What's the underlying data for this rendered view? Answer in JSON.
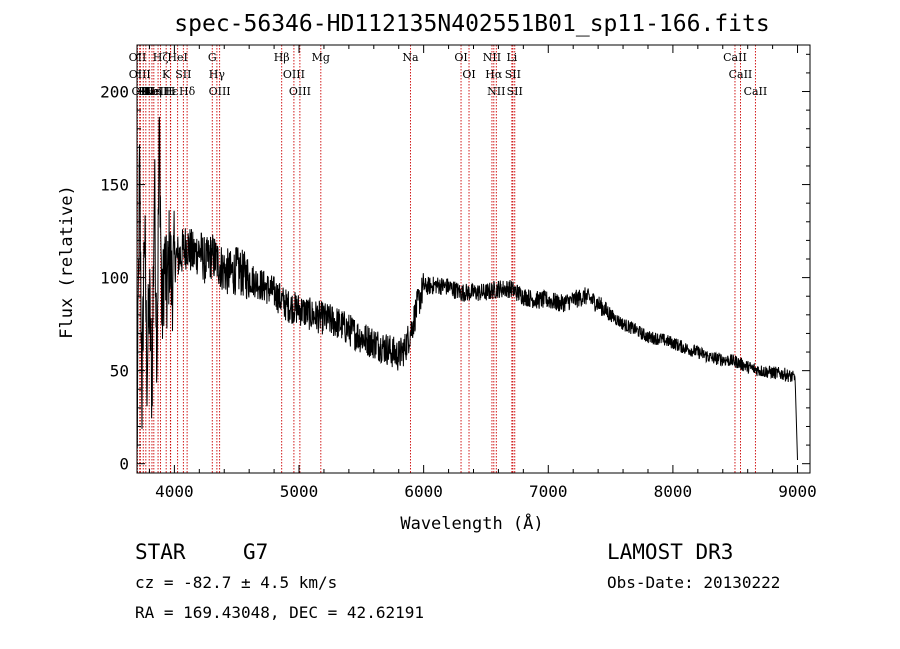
{
  "chart_data": {
    "type": "line",
    "title": "spec-56346-HD112135N402551B01_sp11-166.fits",
    "xlabel": "Wavelength (Å)",
    "ylabel": "Flux (relative)",
    "xlim": [
      3700,
      9100
    ],
    "ylim": [
      -5,
      225
    ],
    "x_ticks": [
      4000,
      5000,
      6000,
      7000,
      8000,
      9000
    ],
    "y_ticks": [
      0,
      50,
      100,
      150,
      200
    ],
    "grid": false,
    "series": [
      {
        "name": "flux",
        "x": [
          3700,
          3720,
          3740,
          3760,
          3780,
          3800,
          3820,
          3840,
          3860,
          3880,
          3900,
          3920,
          3940,
          3960,
          3980,
          4000,
          4050,
          4100,
          4150,
          4200,
          4250,
          4300,
          4350,
          4400,
          4450,
          4500,
          4600,
          4700,
          4800,
          4900,
          5000,
          5100,
          5200,
          5300,
          5400,
          5500,
          5600,
          5700,
          5800,
          5850,
          5900,
          5950,
          6000,
          6100,
          6200,
          6300,
          6400,
          6500,
          6600,
          6700,
          6800,
          6900,
          7000,
          7100,
          7200,
          7300,
          7400,
          7500,
          7600,
          7700,
          7800,
          7900,
          8000,
          8100,
          8200,
          8300,
          8400,
          8500,
          8600,
          8700,
          8800,
          8900,
          8980,
          9000
        ],
        "y": [
          0,
          160,
          35,
          130,
          50,
          90,
          40,
          150,
          60,
          180,
          75,
          110,
          90,
          115,
          95,
          110,
          112,
          118,
          112,
          115,
          108,
          112,
          108,
          104,
          102,
          104,
          100,
          96,
          92,
          85,
          83,
          80,
          78,
          76,
          72,
          68,
          65,
          62,
          58,
          62,
          72,
          85,
          95,
          96,
          95,
          92,
          92,
          92,
          94,
          94,
          90,
          88,
          88,
          86,
          88,
          90,
          86,
          80,
          75,
          72,
          68,
          67,
          65,
          62,
          60,
          57,
          56,
          55,
          52,
          50,
          49,
          48,
          46,
          2
        ]
      }
    ],
    "lines": [
      {
        "wave": 3704,
        "label": "OII"
      },
      {
        "wave": 3722,
        "label": "OIII"
      },
      {
        "wave": 3727,
        "label": "OII"
      },
      {
        "wave": 3750,
        "label": "H"
      },
      {
        "wave": 3771,
        "label": "H"
      },
      {
        "wave": 3798,
        "label": "H"
      },
      {
        "wave": 3820,
        "label": "HeI"
      },
      {
        "wave": 3835,
        "label": "Hη"
      },
      {
        "wave": 3869,
        "label": "NeIII"
      },
      {
        "wave": 3889,
        "label": "Hζ"
      },
      {
        "wave": 3934,
        "label": "K"
      },
      {
        "wave": 3968,
        "label": "H"
      },
      {
        "wave": 3970,
        "label": "Hε"
      },
      {
        "wave": 4026,
        "label": "HeI"
      },
      {
        "wave": 4072,
        "label": "SII"
      },
      {
        "wave": 4102,
        "label": "Hδ"
      },
      {
        "wave": 4304,
        "label": "G"
      },
      {
        "wave": 4341,
        "label": "Hγ"
      },
      {
        "wave": 4363,
        "label": "OIII"
      },
      {
        "wave": 4861,
        "label": "Hβ"
      },
      {
        "wave": 4959,
        "label": "OIII"
      },
      {
        "wave": 5007,
        "label": "OIII"
      },
      {
        "wave": 5175,
        "label": "Mg"
      },
      {
        "wave": 5894,
        "label": "Na"
      },
      {
        "wave": 6300,
        "label": "OI"
      },
      {
        "wave": 6364,
        "label": "OI"
      },
      {
        "wave": 6548,
        "label": "NII"
      },
      {
        "wave": 6563,
        "label": "Hα"
      },
      {
        "wave": 6583,
        "label": "NII"
      },
      {
        "wave": 6708,
        "label": "Li"
      },
      {
        "wave": 6716,
        "label": "SII"
      },
      {
        "wave": 6731,
        "label": "SII"
      },
      {
        "wave": 8498,
        "label": "CaII"
      },
      {
        "wave": 8542,
        "label": "CaII"
      },
      {
        "wave": 8662,
        "label": "CaII"
      }
    ],
    "colors": {
      "spectrum": "#000000",
      "line_markers": "#cc0000",
      "axes": "#000000"
    }
  },
  "info": {
    "object_class": "STAR",
    "subclass": "G7",
    "survey": "LAMOST DR3",
    "redshift": "cz = -82.7 ± 4.5 km/s",
    "obs_date": "Obs-Date: 20130222",
    "coords": "RA = 169.43048, DEC =  42.62191"
  }
}
